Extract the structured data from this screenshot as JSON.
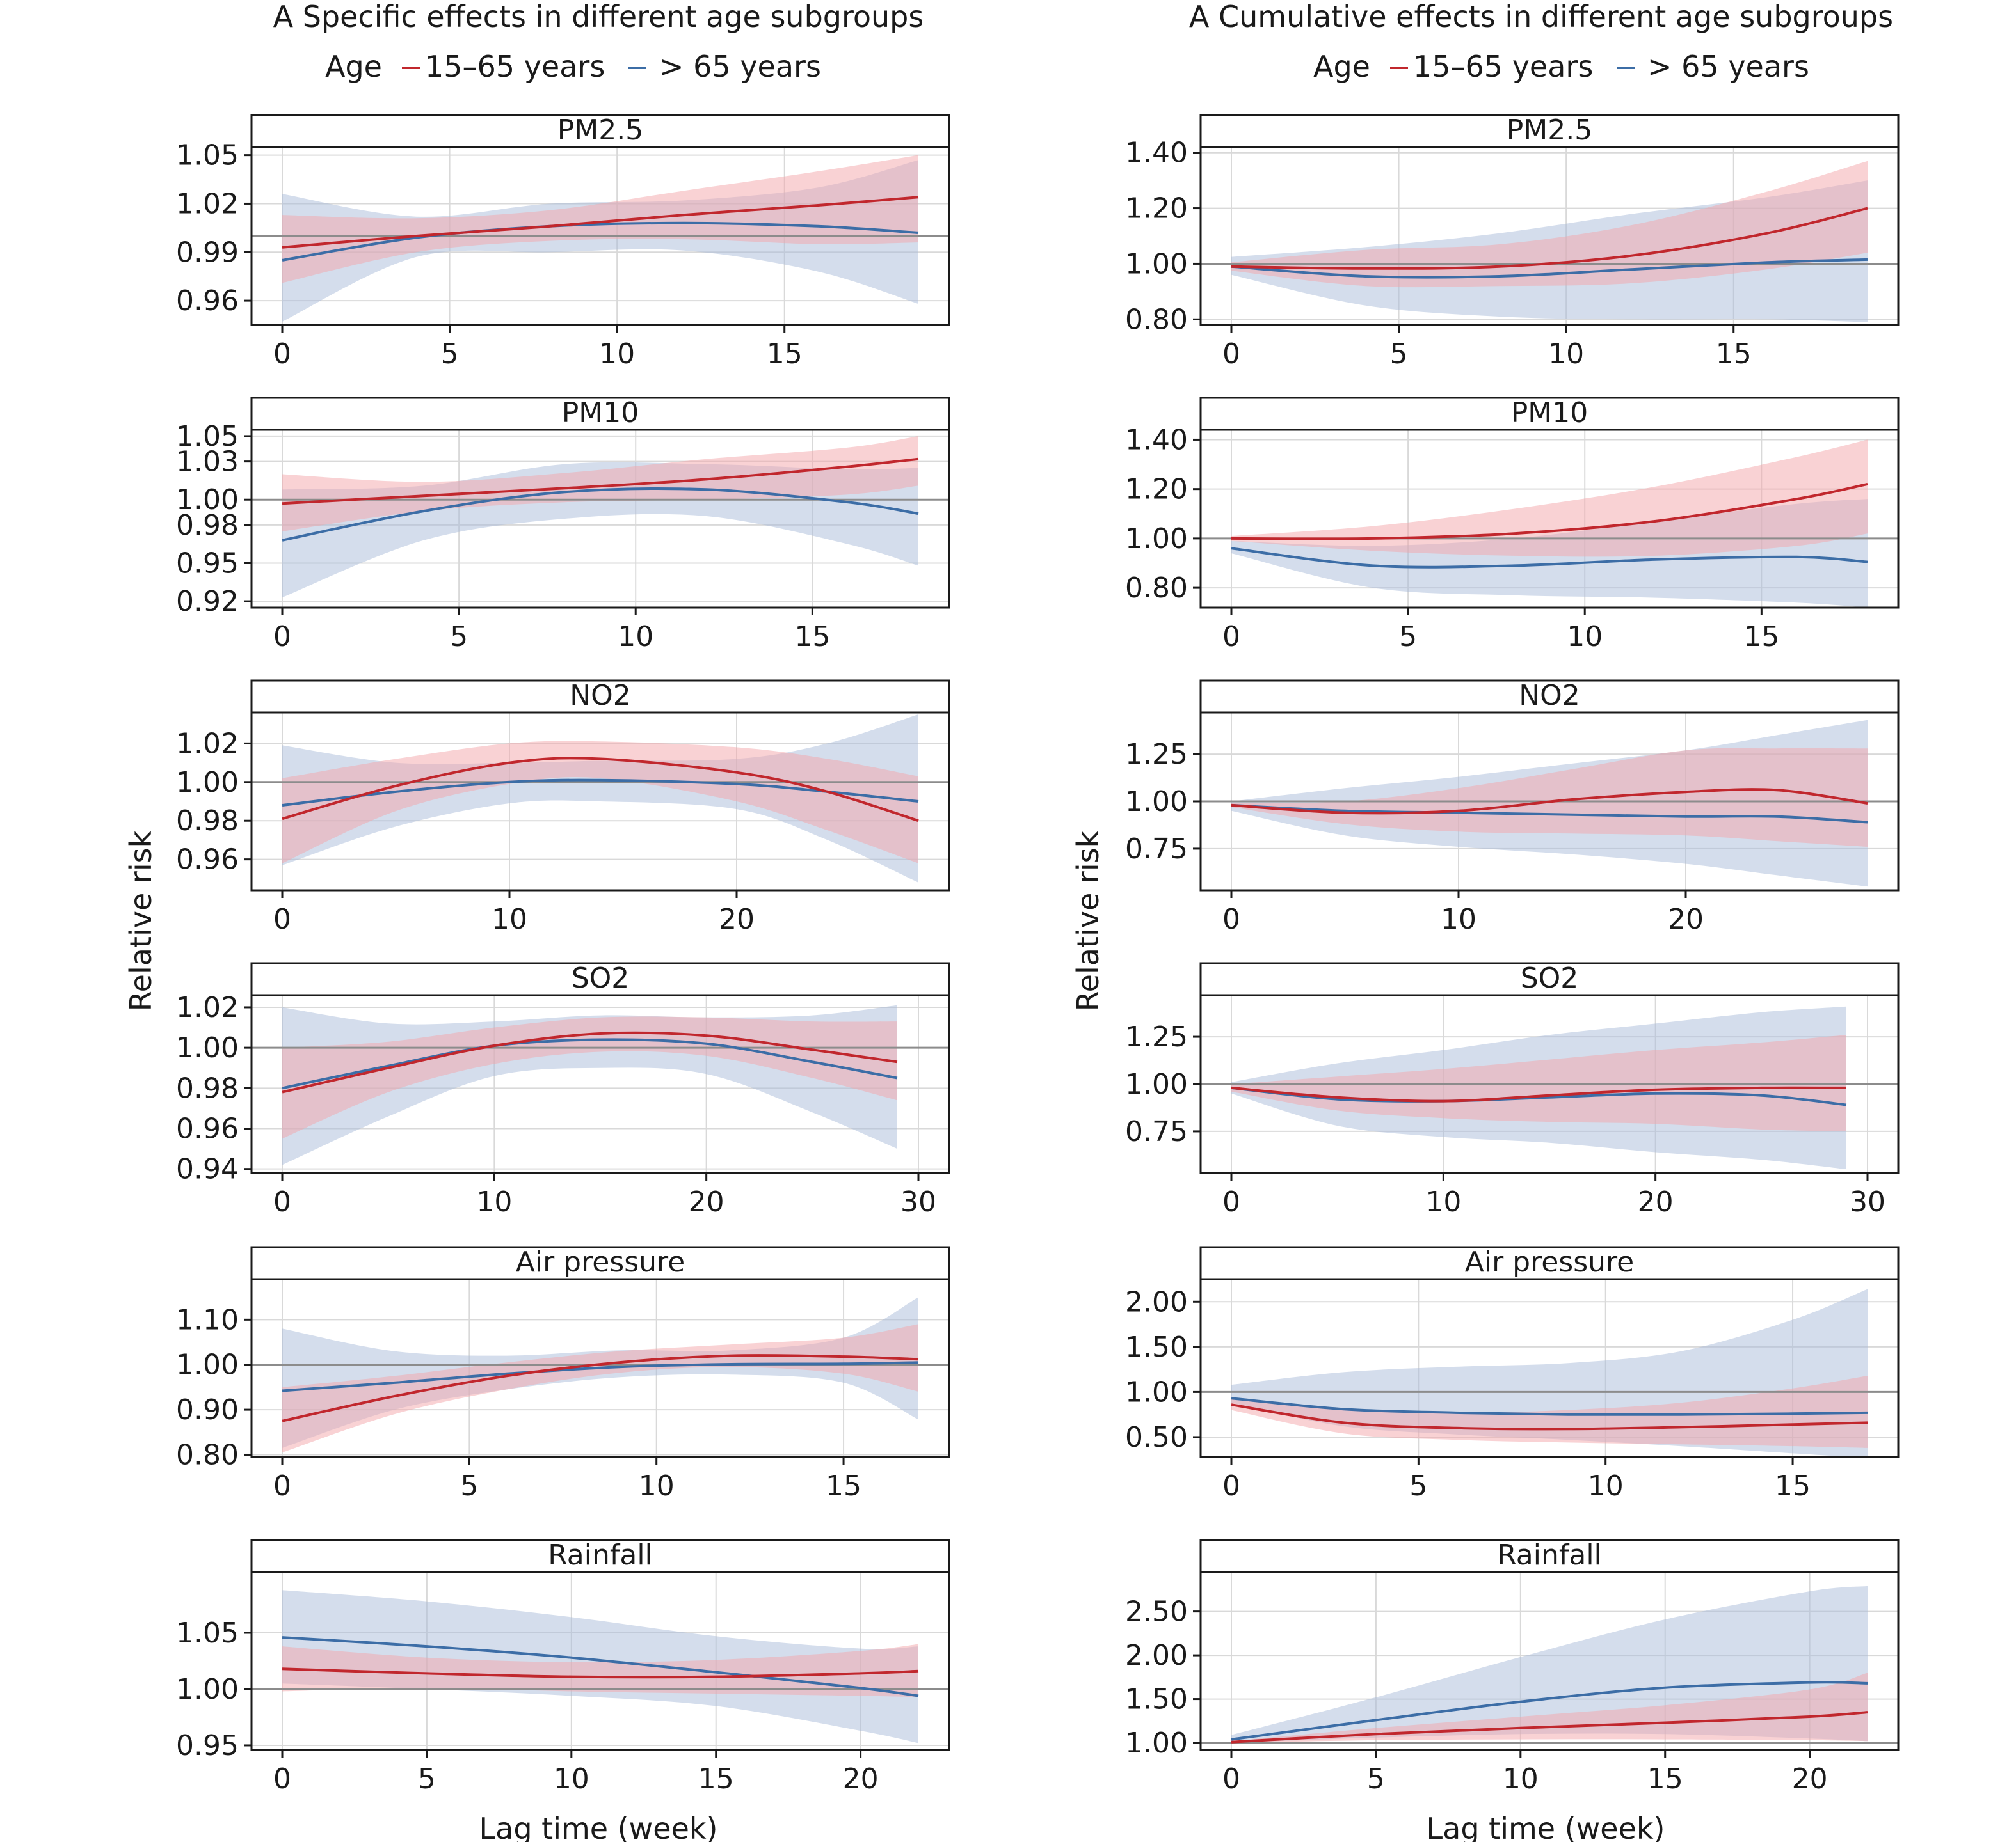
{
  "colors": {
    "young": "#c1272d",
    "old": "#3c6da6",
    "young_band": "#f4a6aa",
    "old_band": "#a9bcd9",
    "grid": "#d9d9d9",
    "ref": "#8c8c8c"
  },
  "columns": [
    {
      "title": "A  Specific effects in different age subgroups"
    },
    {
      "title": "A  Cumulative effects in different age subgroups"
    }
  ],
  "legend": {
    "title": "Age",
    "entries": [
      "15–65 years",
      "> 65 years"
    ]
  },
  "ylabel": "Relative risk",
  "xlabel": "Lag time (week)",
  "chart_data": [
    {
      "type": "line",
      "title": "PM2.5",
      "column": "specific",
      "xmax": 19,
      "xticks": [
        0,
        5,
        10,
        15
      ],
      "ylim": [
        0.945,
        1.055
      ],
      "yticks": [
        0.96,
        0.99,
        1.02,
        1.05
      ],
      "ytick_labels": [
        "0.96",
        "0.99",
        "1.02",
        "1.05"
      ],
      "x": [
        0,
        4,
        8,
        12,
        16,
        19
      ],
      "series": [
        {
          "name": "15–65 years",
          "y": [
            0.993,
            1.0,
            1.006,
            1.013,
            1.019,
            1.024
          ],
          "lower": [
            0.971,
            0.99,
            0.997,
            0.998,
            0.995,
            0.996
          ],
          "upper": [
            1.013,
            1.011,
            1.016,
            1.028,
            1.04,
            1.05
          ]
        },
        {
          "name": "> 65 years",
          "y": [
            0.985,
            0.999,
            1.006,
            1.008,
            1.006,
            1.002
          ],
          "lower": [
            0.947,
            0.987,
            0.99,
            0.991,
            0.978,
            0.958
          ],
          "upper": [
            1.026,
            1.012,
            1.02,
            1.022,
            1.03,
            1.047
          ]
        }
      ]
    },
    {
      "type": "line",
      "title": "PM2.5",
      "column": "cumulative",
      "xmax": 19,
      "xticks": [
        0,
        5,
        10,
        15
      ],
      "ylim": [
        0.78,
        1.42
      ],
      "yticks": [
        0.8,
        1.0,
        1.2,
        1.4
      ],
      "ytick_labels": [
        "0.80",
        "1.00",
        "1.20",
        "1.40"
      ],
      "x": [
        0,
        4,
        8,
        12,
        16,
        19
      ],
      "series": [
        {
          "name": "15–65 years",
          "y": [
            0.99,
            0.983,
            0.99,
            1.03,
            1.11,
            1.2
          ],
          "lower": [
            0.975,
            0.92,
            0.92,
            0.93,
            0.98,
            1.04
          ],
          "upper": [
            1.005,
            1.05,
            1.07,
            1.14,
            1.26,
            1.37
          ]
        },
        {
          "name": "> 65 years",
          "y": [
            0.99,
            0.955,
            0.955,
            0.98,
            1.005,
            1.015
          ],
          "lower": [
            0.96,
            0.85,
            0.81,
            0.8,
            0.8,
            0.79
          ],
          "upper": [
            1.025,
            1.06,
            1.11,
            1.18,
            1.24,
            1.3
          ]
        }
      ]
    },
    {
      "type": "line",
      "title": "PM10",
      "column": "specific",
      "xmax": 18,
      "xticks": [
        0,
        5,
        10,
        15
      ],
      "ylim": [
        0.915,
        1.055
      ],
      "yticks": [
        0.92,
        0.95,
        0.98,
        1.0,
        1.03,
        1.05
      ],
      "ytick_labels": [
        "0.92",
        "0.95",
        "0.98",
        "1.00",
        "1.03",
        "1.05"
      ],
      "x": [
        0,
        4,
        8,
        12,
        16,
        18
      ],
      "series": [
        {
          "name": "15–65 years",
          "y": [
            0.997,
            1.003,
            1.009,
            1.016,
            1.026,
            1.032
          ],
          "lower": [
            0.975,
            0.991,
            0.998,
            1.0,
            1.004,
            1.011
          ],
          "upper": [
            1.02,
            1.014,
            1.021,
            1.032,
            1.041,
            1.05
          ]
        },
        {
          "name": "> 65 years",
          "y": [
            0.968,
            0.991,
            1.006,
            1.008,
            0.998,
            0.989
          ],
          "lower": [
            0.923,
            0.968,
            0.985,
            0.987,
            0.965,
            0.948
          ],
          "upper": [
            1.008,
            1.011,
            1.028,
            1.028,
            1.024,
            1.025
          ]
        }
      ]
    },
    {
      "type": "line",
      "title": "PM10",
      "column": "cumulative",
      "xmax": 18,
      "xticks": [
        0,
        5,
        10,
        15
      ],
      "ylim": [
        0.72,
        1.44
      ],
      "yticks": [
        0.8,
        1.0,
        1.2,
        1.4
      ],
      "ytick_labels": [
        "0.80",
        "1.00",
        "1.20",
        "1.40"
      ],
      "x": [
        0,
        4,
        8,
        12,
        16,
        18
      ],
      "series": [
        {
          "name": "15–65 years",
          "y": [
            1.0,
            1.0,
            1.02,
            1.07,
            1.16,
            1.22
          ],
          "lower": [
            0.99,
            0.95,
            0.93,
            0.93,
            0.97,
            1.02
          ],
          "upper": [
            1.01,
            1.05,
            1.12,
            1.21,
            1.33,
            1.4
          ]
        },
        {
          "name": "> 65 years",
          "y": [
            0.96,
            0.89,
            0.89,
            0.915,
            0.925,
            0.905
          ],
          "lower": [
            0.94,
            0.8,
            0.77,
            0.76,
            0.74,
            0.72
          ],
          "upper": [
            0.99,
            0.97,
            1.0,
            1.07,
            1.14,
            1.16
          ]
        }
      ]
    },
    {
      "type": "line",
      "title": "NO2",
      "column": "specific",
      "xmax": 28,
      "xticks": [
        0,
        10,
        20
      ],
      "ylim": [
        0.944,
        1.036
      ],
      "yticks": [
        0.96,
        0.98,
        1.0,
        1.02
      ],
      "ytick_labels": [
        "0.96",
        "0.98",
        "1.00",
        "1.02"
      ],
      "x": [
        0,
        5,
        10,
        14,
        20,
        24,
        28
      ],
      "series": [
        {
          "name": "15–65 years",
          "y": [
            0.981,
            0.998,
            1.01,
            1.012,
            1.005,
            0.995,
            0.98
          ],
          "lower": [
            0.958,
            0.985,
            0.999,
            1.002,
            0.99,
            0.975,
            0.958
          ],
          "upper": [
            1.002,
            1.012,
            1.02,
            1.021,
            1.018,
            1.012,
            1.003
          ]
        },
        {
          "name": "> 65 years",
          "y": [
            0.988,
            0.995,
            1.0,
            1.001,
            0.999,
            0.995,
            0.99
          ],
          "lower": [
            0.957,
            0.977,
            0.989,
            0.99,
            0.986,
            0.97,
            0.948
          ],
          "upper": [
            1.019,
            1.01,
            1.01,
            1.011,
            1.012,
            1.02,
            1.035
          ]
        }
      ]
    },
    {
      "type": "line",
      "title": "NO2",
      "column": "cumulative",
      "xmax": 28,
      "xticks": [
        0,
        10,
        20
      ],
      "ylim": [
        0.53,
        1.47
      ],
      "yticks": [
        0.75,
        1.0,
        1.25
      ],
      "ytick_labels": [
        "0.75",
        "1.00",
        "1.25"
      ],
      "x": [
        0,
        5,
        10,
        15,
        20,
        24,
        28
      ],
      "series": [
        {
          "name": "15–65 years",
          "y": [
            0.98,
            0.94,
            0.95,
            1.01,
            1.05,
            1.06,
            0.99
          ],
          "lower": [
            0.97,
            0.88,
            0.84,
            0.83,
            0.82,
            0.79,
            0.76
          ],
          "upper": [
            0.99,
            1.0,
            1.07,
            1.17,
            1.27,
            1.28,
            1.28
          ]
        },
        {
          "name": "> 65 years",
          "y": [
            0.98,
            0.95,
            0.94,
            0.93,
            0.92,
            0.92,
            0.89
          ],
          "lower": [
            0.95,
            0.82,
            0.76,
            0.72,
            0.67,
            0.61,
            0.55
          ],
          "upper": [
            1.0,
            1.07,
            1.13,
            1.2,
            1.27,
            1.35,
            1.43
          ]
        }
      ]
    },
    {
      "type": "line",
      "title": "SO2",
      "column": "specific",
      "xmax": 29,
      "xticks": [
        0,
        10,
        20,
        30
      ],
      "ylim": [
        0.938,
        1.026
      ],
      "yticks": [
        0.94,
        0.96,
        0.98,
        1.0,
        1.02
      ],
      "ytick_labels": [
        "0.94",
        "0.96",
        "0.98",
        "1.00",
        "1.02"
      ],
      "x": [
        0,
        5,
        10,
        15,
        20,
        25,
        29
      ],
      "series": [
        {
          "name": "15–65 years",
          "y": [
            0.978,
            0.99,
            1.001,
            1.007,
            1.006,
            0.999,
            0.993
          ],
          "lower": [
            0.955,
            0.978,
            0.992,
            0.998,
            0.996,
            0.985,
            0.974
          ],
          "upper": [
            1.0,
            1.003,
            1.01,
            1.015,
            1.015,
            1.013,
            1.013
          ]
        },
        {
          "name": "> 65 years",
          "y": [
            0.98,
            0.991,
            1.001,
            1.004,
            1.002,
            0.993,
            0.985
          ],
          "lower": [
            0.942,
            0.966,
            0.986,
            0.99,
            0.987,
            0.968,
            0.95
          ],
          "upper": [
            1.02,
            1.012,
            1.013,
            1.016,
            1.015,
            1.016,
            1.021
          ]
        }
      ]
    },
    {
      "type": "line",
      "title": "SO2",
      "column": "cumulative",
      "xmax": 29,
      "xticks": [
        0,
        10,
        20,
        30
      ],
      "ylim": [
        0.53,
        1.47
      ],
      "yticks": [
        0.75,
        1.0,
        1.25
      ],
      "ytick_labels": [
        "0.75",
        "1.00",
        "1.25"
      ],
      "x": [
        0,
        5,
        10,
        15,
        20,
        25,
        29
      ],
      "series": [
        {
          "name": "15–65 years",
          "y": [
            0.98,
            0.93,
            0.91,
            0.94,
            0.97,
            0.98,
            0.98
          ],
          "lower": [
            0.96,
            0.86,
            0.82,
            0.8,
            0.79,
            0.76,
            0.75
          ],
          "upper": [
            1.0,
            1.04,
            1.08,
            1.13,
            1.18,
            1.22,
            1.26
          ]
        },
        {
          "name": "> 65 years",
          "y": [
            0.98,
            0.92,
            0.91,
            0.93,
            0.95,
            0.94,
            0.89
          ],
          "lower": [
            0.95,
            0.78,
            0.72,
            0.69,
            0.64,
            0.6,
            0.55
          ],
          "upper": [
            1.01,
            1.11,
            1.18,
            1.26,
            1.32,
            1.38,
            1.41
          ]
        }
      ]
    },
    {
      "type": "line",
      "title": "Air pressure",
      "column": "specific",
      "xmax": 17,
      "xticks": [
        0,
        5,
        10,
        15
      ],
      "ylim": [
        0.795,
        1.19
      ],
      "yticks": [
        0.8,
        0.9,
        1.0,
        1.1
      ],
      "ytick_labels": [
        "0.80",
        "0.90",
        "1.00",
        "1.10"
      ],
      "x": [
        0,
        3,
        6,
        9,
        12,
        15,
        17
      ],
      "series": [
        {
          "name": "15–65 years",
          "y": [
            0.875,
            0.93,
            0.975,
            1.005,
            1.02,
            1.018,
            1.012
          ],
          "lower": [
            0.805,
            0.89,
            0.945,
            0.982,
            0.995,
            0.98,
            0.94
          ],
          "upper": [
            0.95,
            0.975,
            1.005,
            1.03,
            1.045,
            1.06,
            1.09
          ]
        },
        {
          "name": "> 65 years",
          "y": [
            0.942,
            0.96,
            0.98,
            0.995,
            1.001,
            1.002,
            1.005
          ],
          "lower": [
            0.815,
            0.9,
            0.945,
            0.972,
            0.978,
            0.96,
            0.878
          ],
          "upper": [
            1.08,
            1.03,
            1.02,
            1.032,
            1.032,
            1.06,
            1.15
          ]
        }
      ]
    },
    {
      "type": "line",
      "title": "Air pressure",
      "column": "cumulative",
      "xmax": 17,
      "xticks": [
        0,
        5,
        10,
        15
      ],
      "ylim": [
        0.28,
        2.25
      ],
      "yticks": [
        0.5,
        1.0,
        1.5,
        2.0
      ],
      "ytick_labels": [
        "0.50",
        "1.00",
        "1.50",
        "2.00"
      ],
      "x": [
        0,
        3,
        6,
        9,
        12,
        15,
        17
      ],
      "series": [
        {
          "name": "15–65 years",
          "y": [
            0.86,
            0.66,
            0.6,
            0.59,
            0.61,
            0.64,
            0.66
          ],
          "lower": [
            0.8,
            0.54,
            0.47,
            0.44,
            0.42,
            0.4,
            0.38
          ],
          "upper": [
            0.94,
            0.8,
            0.77,
            0.8,
            0.88,
            1.04,
            1.18
          ]
        },
        {
          "name": "> 65 years",
          "y": [
            0.93,
            0.81,
            0.77,
            0.75,
            0.75,
            0.76,
            0.77
          ],
          "lower": [
            0.88,
            0.62,
            0.53,
            0.47,
            0.4,
            0.32,
            0.27
          ],
          "upper": [
            1.08,
            1.22,
            1.28,
            1.32,
            1.45,
            1.8,
            2.14
          ]
        }
      ]
    },
    {
      "type": "line",
      "title": "Rainfall",
      "column": "specific",
      "xmax": 22,
      "xticks": [
        0,
        5,
        10,
        15,
        20
      ],
      "ylim": [
        0.946,
        1.104
      ],
      "yticks": [
        0.95,
        1.0,
        1.05
      ],
      "ytick_labels": [
        "0.95",
        "1.00",
        "1.05"
      ],
      "x": [
        0,
        5,
        10,
        15,
        20,
        22
      ],
      "series": [
        {
          "name": "15–65 years",
          "y": [
            1.018,
            1.014,
            1.011,
            1.011,
            1.014,
            1.016
          ],
          "lower": [
            0.998,
            1.001,
            0.998,
            0.996,
            0.994,
            0.993
          ],
          "upper": [
            1.038,
            1.028,
            1.024,
            1.026,
            1.034,
            1.04
          ]
        },
        {
          "name": "> 65 years",
          "y": [
            1.046,
            1.038,
            1.028,
            1.015,
            1.001,
            0.994
          ],
          "lower": [
            1.005,
            1.0,
            0.994,
            0.985,
            0.963,
            0.952
          ],
          "upper": [
            1.088,
            1.078,
            1.064,
            1.047,
            1.036,
            1.038
          ]
        }
      ]
    },
    {
      "type": "line",
      "title": "Rainfall",
      "column": "cumulative",
      "xmax": 22,
      "xticks": [
        0,
        5,
        10,
        15,
        20
      ],
      "ylim": [
        0.92,
        2.95
      ],
      "yticks": [
        1.0,
        1.5,
        2.0,
        2.5
      ],
      "ytick_labels": [
        "1.00",
        "1.50",
        "2.00",
        "2.50"
      ],
      "x": [
        0,
        5,
        10,
        15,
        20,
        22
      ],
      "series": [
        {
          "name": "15–65 years",
          "y": [
            1.01,
            1.1,
            1.17,
            1.23,
            1.3,
            1.35
          ],
          "lower": [
            1.0,
            1.03,
            1.04,
            1.04,
            1.03,
            1.02
          ],
          "upper": [
            1.02,
            1.17,
            1.3,
            1.43,
            1.61,
            1.8
          ]
        },
        {
          "name": "> 65 years",
          "y": [
            1.04,
            1.26,
            1.47,
            1.63,
            1.69,
            1.68
          ],
          "lower": [
            1.0,
            1.06,
            1.1,
            1.1,
            1.05,
            1.02
          ],
          "upper": [
            1.09,
            1.52,
            1.98,
            2.41,
            2.73,
            2.79
          ]
        }
      ]
    }
  ]
}
